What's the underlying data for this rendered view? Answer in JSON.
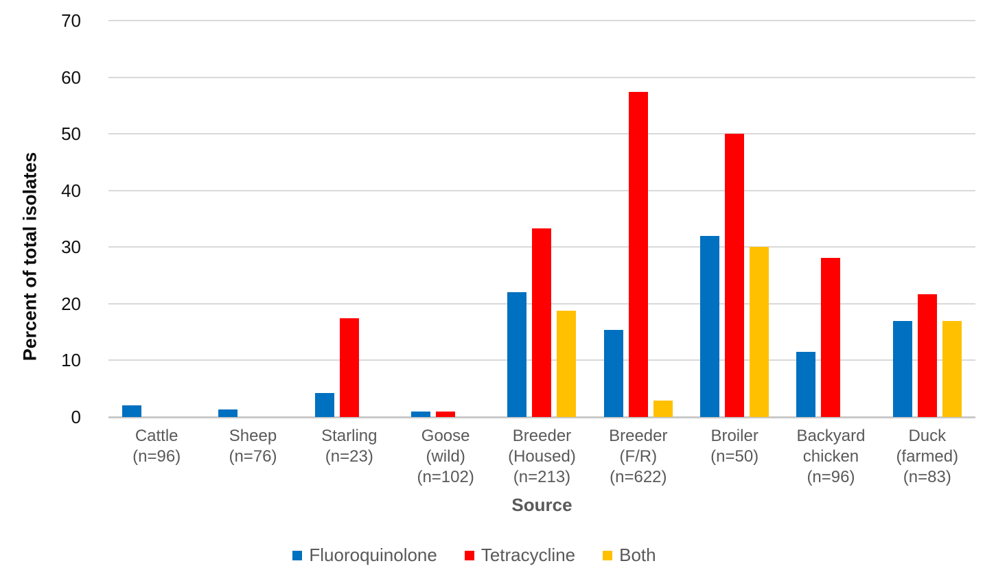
{
  "chart_data": {
    "type": "bar",
    "title": "",
    "xlabel": "Source",
    "ylabel": "Percent of total isolates",
    "ylim": [
      0,
      70
    ],
    "yticks": [
      0,
      10,
      20,
      30,
      40,
      50,
      60,
      70
    ],
    "grid": "horizontal-gridlines-on",
    "legend_position": "bottom-center",
    "categories": [
      [
        "Cattle",
        "(n=96)"
      ],
      [
        "Sheep",
        "(n=76)"
      ],
      [
        "Starling",
        "(n=23)"
      ],
      [
        "Goose",
        "(wild)",
        "(n=102)"
      ],
      [
        "Breeder",
        "(Housed)",
        "(n=213)"
      ],
      [
        "Breeder",
        "(F/R)",
        "(n=622)"
      ],
      [
        "Broiler",
        "(n=50)"
      ],
      [
        "Backyard",
        "chicken",
        "(n=96)"
      ],
      [
        "Duck",
        "(farmed)",
        "(n=83)"
      ]
    ],
    "series": [
      {
        "name": "Fluoroquinolone",
        "color": "#0070C0",
        "values": [
          2.1,
          1.3,
          4.3,
          1.0,
          22.1,
          15.4,
          32.0,
          11.5,
          17.0
        ]
      },
      {
        "name": "Tetracycline",
        "color": "#FF0000",
        "values": [
          0,
          0,
          17.4,
          1.0,
          33.3,
          57.4,
          50.0,
          28.1,
          21.7
        ]
      },
      {
        "name": "Both",
        "color": "#FFC000",
        "values": [
          0,
          0,
          0,
          0,
          18.8,
          2.9,
          30.0,
          0,
          17.0
        ]
      }
    ]
  },
  "colors": {
    "background": "#FFFFFF",
    "gridline": "#D9D9D9",
    "axis_line": "#C9C9C9",
    "y_tick_text": "#111111",
    "y_title_text": "#0D0D0D",
    "x_label_text": "#595959",
    "legend_text": "#595959"
  }
}
